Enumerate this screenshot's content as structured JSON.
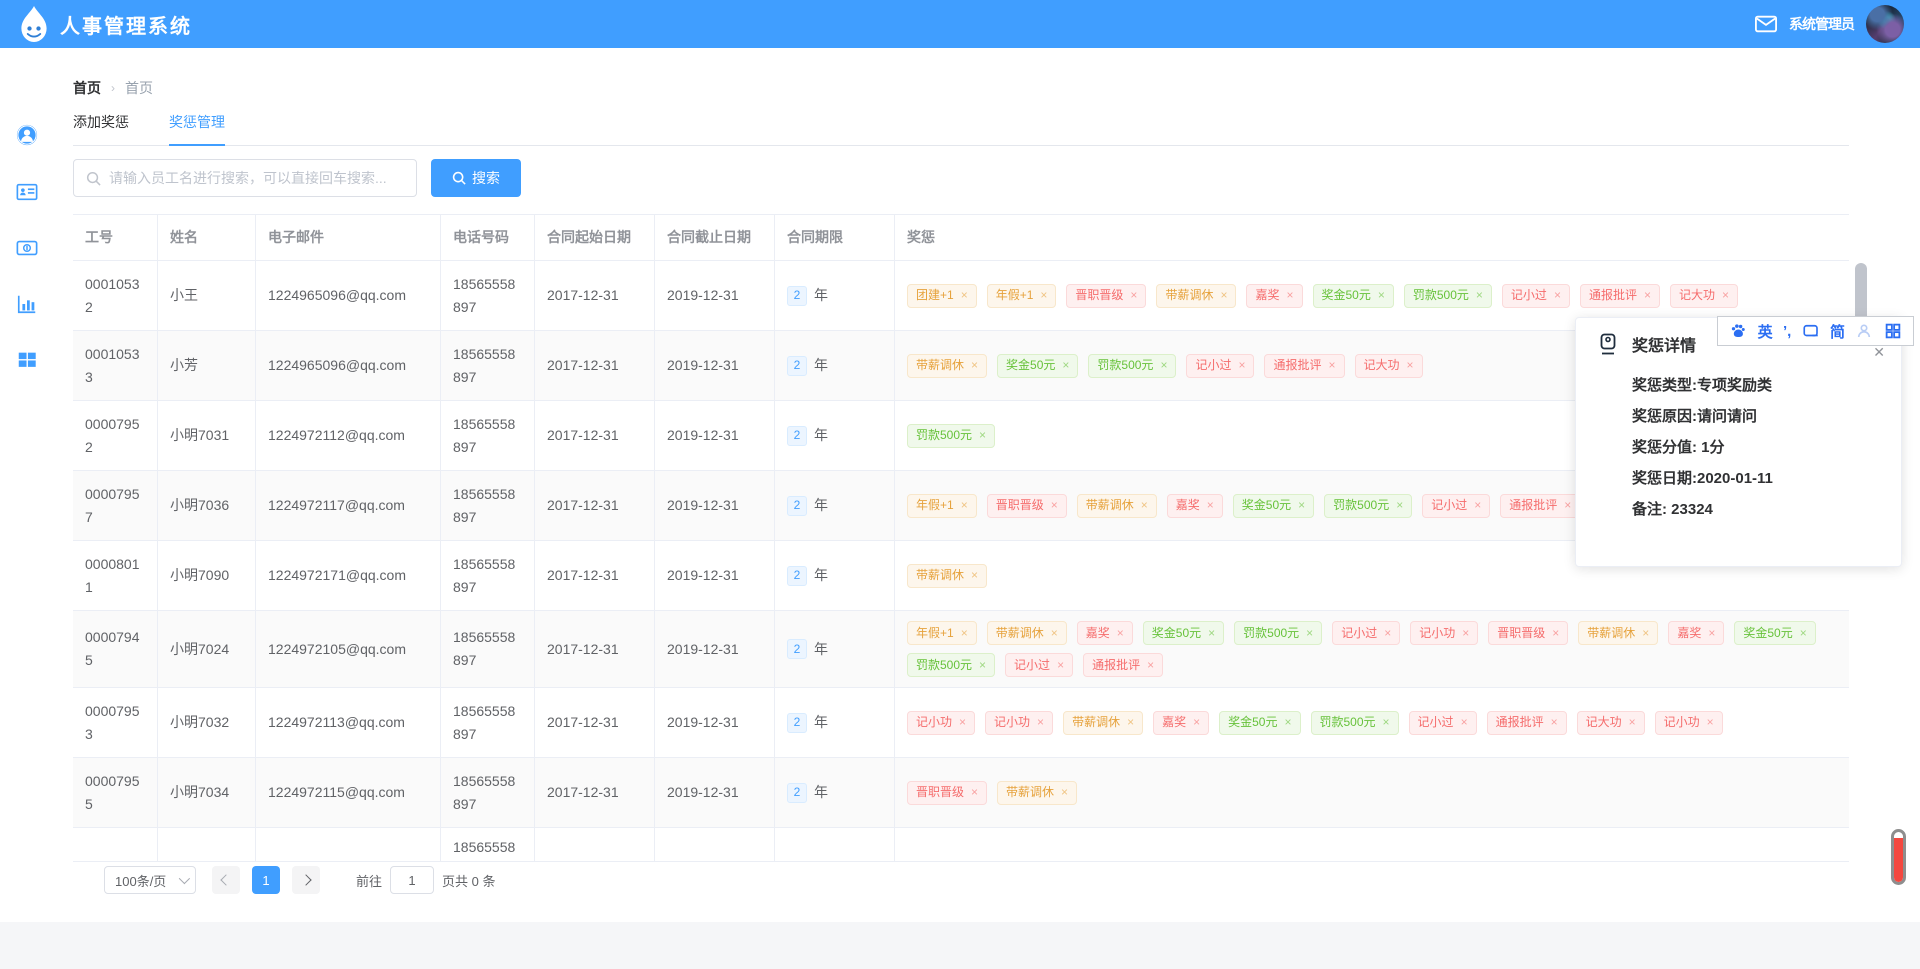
{
  "header": {
    "title": "人事管理系统",
    "user": "系统管理员"
  },
  "sidebar": {
    "items": [
      {
        "icon": "user-circle",
        "name": "sidebar-item-profile"
      },
      {
        "icon": "id-card",
        "name": "sidebar-item-employees"
      },
      {
        "icon": "money",
        "name": "sidebar-item-salary"
      },
      {
        "icon": "chart",
        "name": "sidebar-item-statistics"
      },
      {
        "icon": "grid",
        "name": "sidebar-item-modules"
      }
    ]
  },
  "breadcrumb": [
    "首页",
    "首页"
  ],
  "tabs": [
    {
      "label": "添加奖惩",
      "active": false
    },
    {
      "label": "奖惩管理",
      "active": true
    }
  ],
  "search": {
    "placeholder": "请输入员工名进行搜索，可以直接回车搜索...",
    "button": "搜索"
  },
  "colors": {
    "accent": "#409EFF",
    "tag_warning": "#e6a23c",
    "tag_danger": "#f56c6c",
    "tag_success": "#67c23a"
  },
  "table": {
    "columns": [
      "工号",
      "姓名",
      "电子邮件",
      "电话号码",
      "合同起始日期",
      "合同截止日期",
      "合同期限",
      "奖惩"
    ],
    "year_suffix": "年",
    "rows": [
      {
        "id": "00010532",
        "name": "小王",
        "email": "1224965096@qq.com",
        "phone": "18565558897",
        "start": "2017-12-31",
        "end": "2019-12-31",
        "term": "2",
        "tags": [
          [
            "团建+1",
            "warning"
          ],
          [
            "年假+1",
            "warning"
          ],
          [
            "晋职晋级",
            "danger"
          ],
          [
            "带薪调休",
            "warning"
          ],
          [
            "嘉奖",
            "danger"
          ],
          [
            "奖金50元",
            "success"
          ],
          [
            "罚款500元",
            "success"
          ],
          [
            "记小过",
            "danger"
          ],
          [
            "通报批评",
            "danger"
          ],
          [
            "记大功",
            "danger"
          ]
        ]
      },
      {
        "id": "00010533",
        "name": "小芳",
        "email": "1224965096@qq.com",
        "phone": "18565558897",
        "start": "2017-12-31",
        "end": "2019-12-31",
        "term": "2",
        "tags": [
          [
            "带薪调休",
            "warning"
          ],
          [
            "奖金50元",
            "success"
          ],
          [
            "罚款500元",
            "success"
          ],
          [
            "记小过",
            "danger"
          ],
          [
            "通报批评",
            "danger"
          ],
          [
            "记大功",
            "danger"
          ]
        ]
      },
      {
        "id": "00007952",
        "name": "小明7031",
        "email": "1224972112@qq.com",
        "phone": "18565558897",
        "start": "2017-12-31",
        "end": "2019-12-31",
        "term": "2",
        "tags": [
          [
            "罚款500元",
            "success"
          ]
        ]
      },
      {
        "id": "00007957",
        "name": "小明7036",
        "email": "1224972117@qq.com",
        "phone": "18565558897",
        "start": "2017-12-31",
        "end": "2019-12-31",
        "term": "2",
        "tags": [
          [
            "年假+1",
            "warning"
          ],
          [
            "晋职晋级",
            "danger"
          ],
          [
            "带薪调休",
            "warning"
          ],
          [
            "嘉奖",
            "danger"
          ],
          [
            "奖金50元",
            "success"
          ],
          [
            "罚款500元",
            "success"
          ],
          [
            "记小过",
            "danger"
          ],
          [
            "通报批评",
            "danger"
          ]
        ]
      },
      {
        "id": "00008011",
        "name": "小明7090",
        "email": "1224972171@qq.com",
        "phone": "18565558897",
        "start": "2017-12-31",
        "end": "2019-12-31",
        "term": "2",
        "tags": [
          [
            "带薪调休",
            "warning"
          ]
        ]
      },
      {
        "id": "00007945",
        "name": "小明7024",
        "email": "1224972105@qq.com",
        "phone": "18565558897",
        "start": "2017-12-31",
        "end": "2019-12-31",
        "term": "2",
        "tags": [
          [
            "年假+1",
            "warning"
          ],
          [
            "带薪调休",
            "warning"
          ],
          [
            "嘉奖",
            "danger"
          ],
          [
            "奖金50元",
            "success"
          ],
          [
            "罚款500元",
            "success"
          ],
          [
            "记小过",
            "danger"
          ],
          [
            "记小功",
            "danger"
          ],
          [
            "晋职晋级",
            "danger"
          ],
          [
            "带薪调休",
            "warning"
          ],
          [
            "嘉奖",
            "danger"
          ],
          [
            "奖金50元",
            "success"
          ],
          [
            "罚款500元",
            "success"
          ],
          [
            "记小过",
            "danger"
          ],
          [
            "通报批评",
            "danger"
          ]
        ]
      },
      {
        "id": "00007953",
        "name": "小明7032",
        "email": "1224972113@qq.com",
        "phone": "18565558897",
        "start": "2017-12-31",
        "end": "2019-12-31",
        "term": "2",
        "tags": [
          [
            "记小功",
            "danger"
          ],
          [
            "记小功",
            "danger"
          ],
          [
            "带薪调休",
            "warning"
          ],
          [
            "嘉奖",
            "danger"
          ],
          [
            "奖金50元",
            "success"
          ],
          [
            "罚款500元",
            "success"
          ],
          [
            "记小过",
            "danger"
          ],
          [
            "通报批评",
            "danger"
          ],
          [
            "记大功",
            "danger"
          ],
          [
            "记小功",
            "danger"
          ]
        ]
      },
      {
        "id": "00007955",
        "name": "小明7034",
        "email": "1224972115@qq.com",
        "phone": "18565558897",
        "start": "2017-12-31",
        "end": "2019-12-31",
        "term": "2",
        "tags": [
          [
            "晋职晋级",
            "danger"
          ],
          [
            "带薪调休",
            "warning"
          ]
        ]
      }
    ],
    "partial_row_phone": "185655588"
  },
  "popup": {
    "title": "奖惩详情",
    "close": "✕",
    "lines": [
      "奖惩类型:专项奖励类",
      "奖惩原因:请问请问",
      "奖惩分值: 1分",
      "奖惩日期:2020-01-11",
      "备注: 23324"
    ]
  },
  "ime_bar": {
    "items": [
      {
        "icon": "paw",
        "name": "baidu-paw-icon"
      },
      {
        "text": "英",
        "name": "ime-english-mode"
      },
      {
        "text": "’,",
        "name": "ime-punctuation-mode"
      },
      {
        "icon": "kbd",
        "name": "soft-keyboard-icon"
      },
      {
        "text": "简",
        "name": "ime-simplified-mode"
      },
      {
        "icon": "person",
        "name": "ime-user-icon"
      },
      {
        "icon": "grid88",
        "name": "ime-grid-icon"
      }
    ]
  },
  "pagination": {
    "page_size": "100条/页",
    "page": "1",
    "goto_label": "前往",
    "goto_value": "1",
    "suffix": "页共 0 条"
  }
}
